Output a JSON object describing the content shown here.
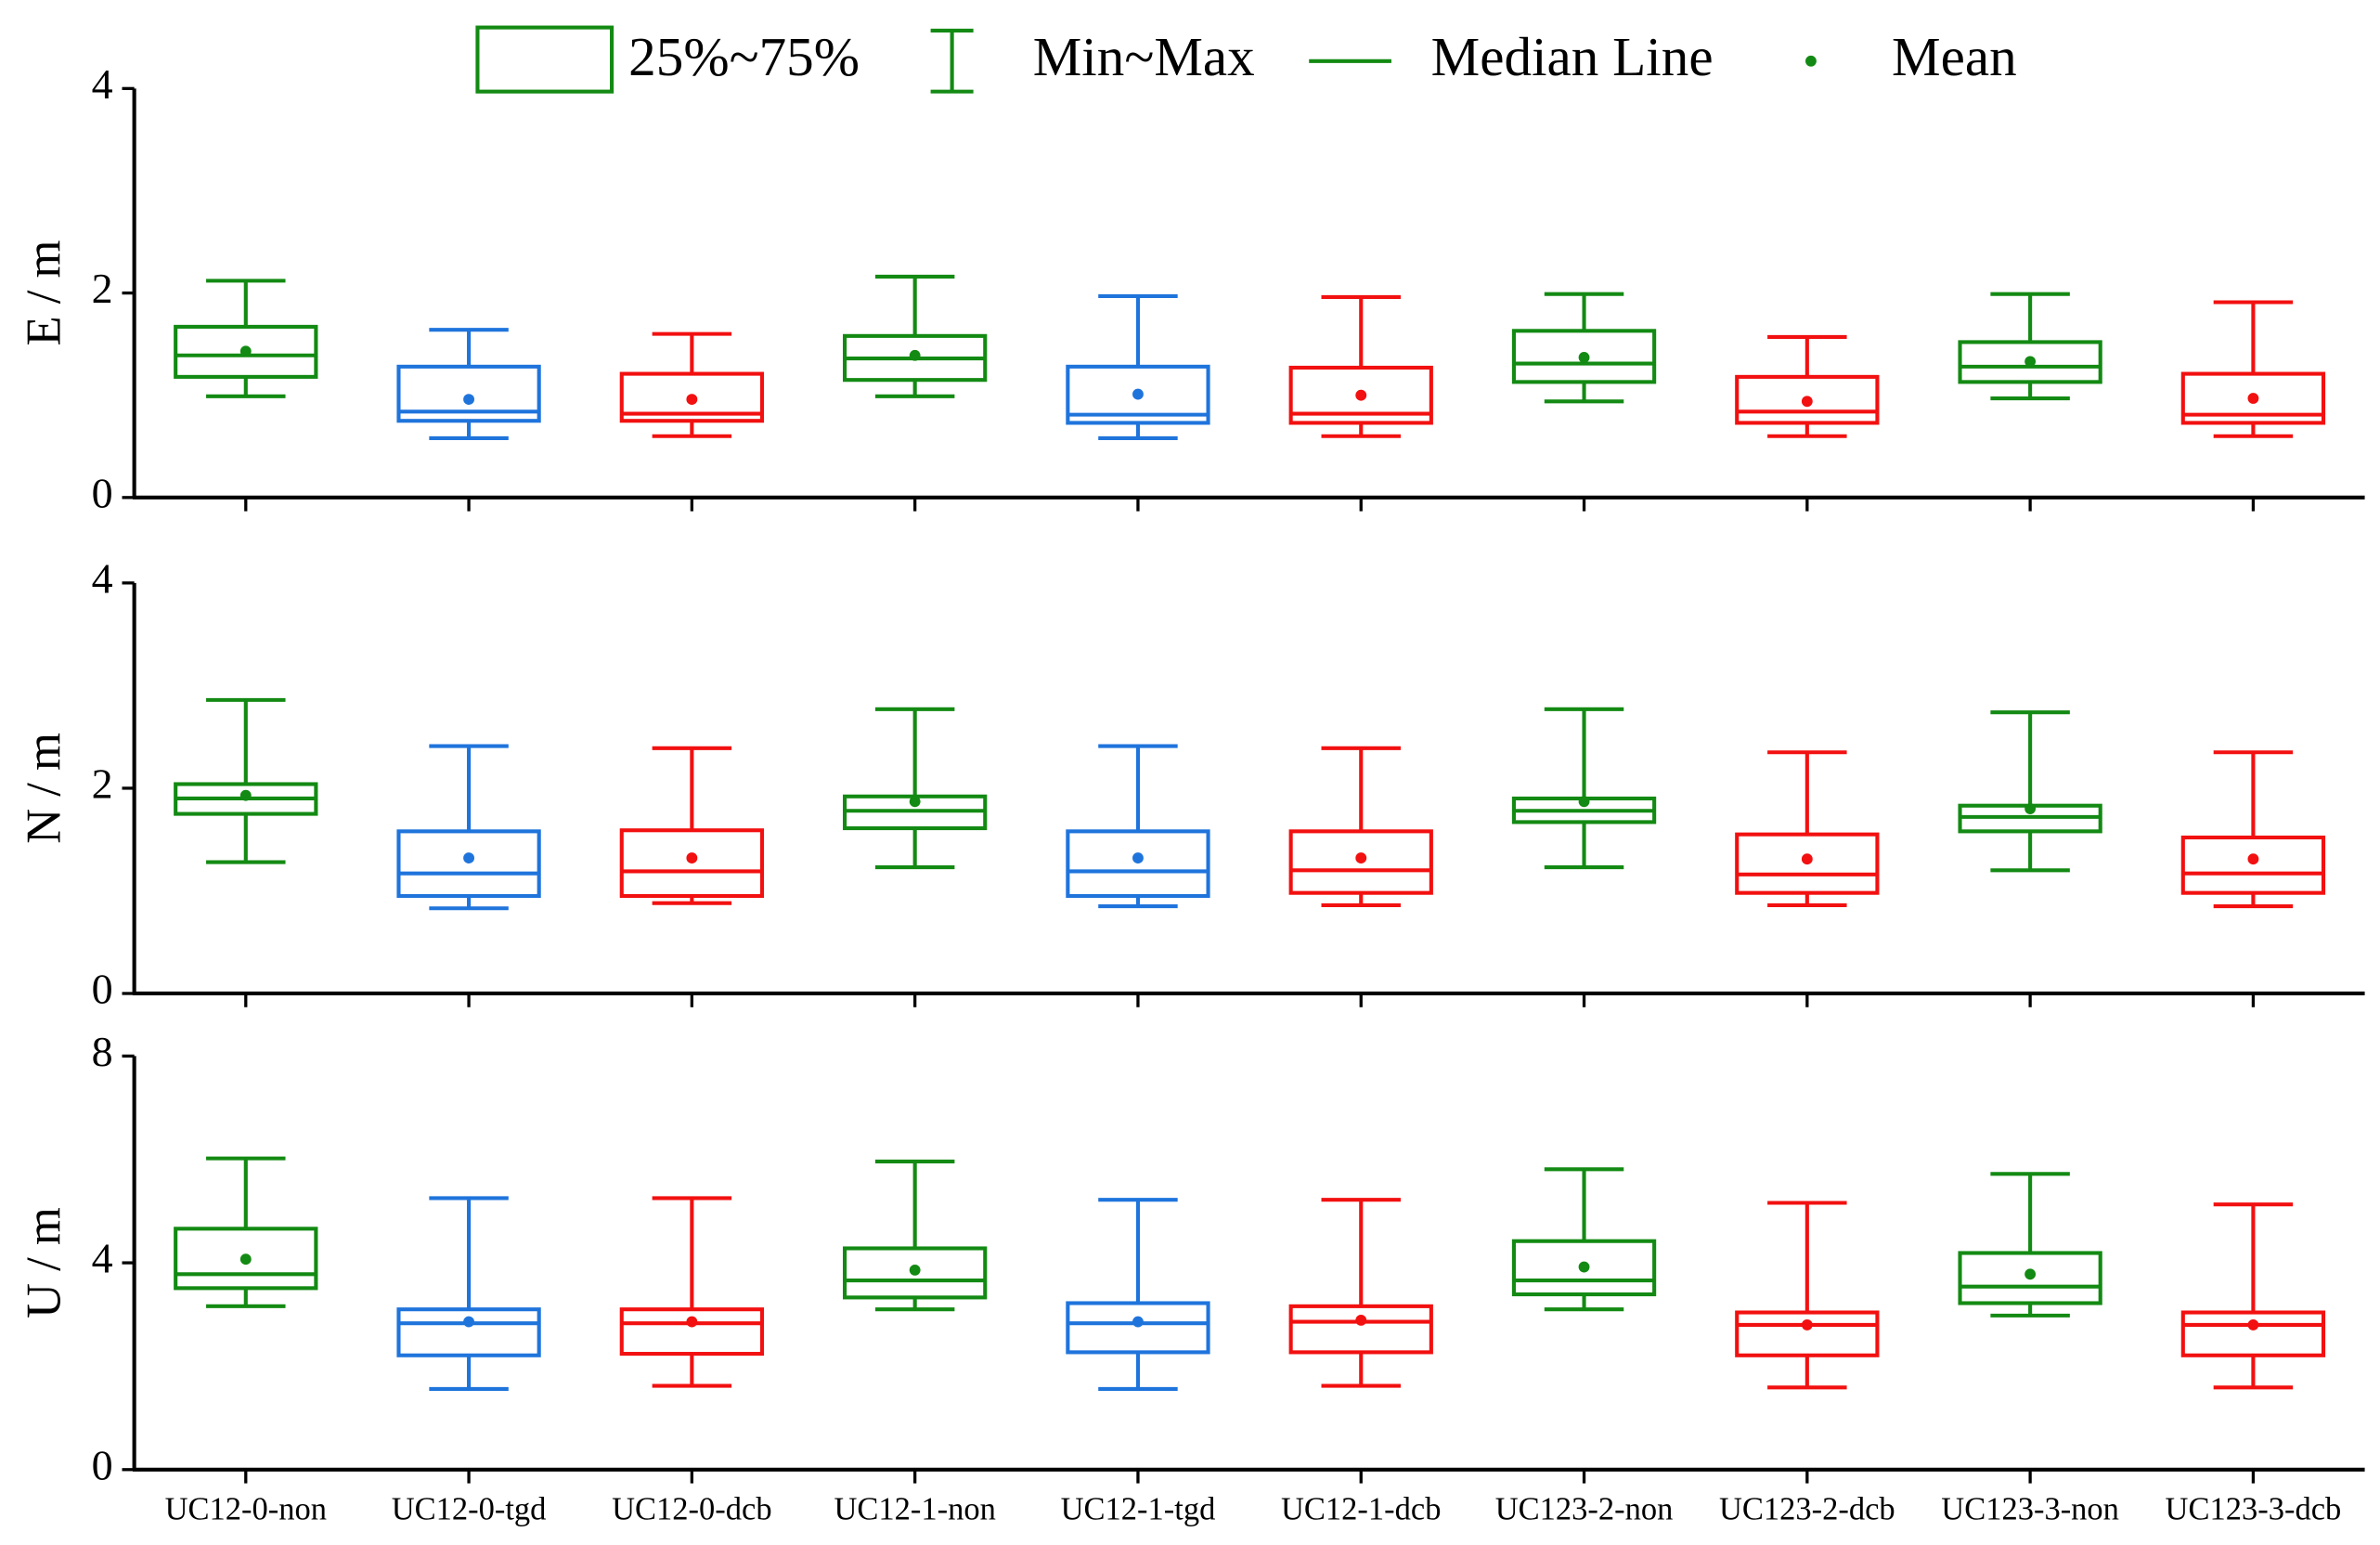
{
  "chart_data": [
    {
      "type": "box",
      "ylabel": "E / m",
      "ylim": [
        0,
        4
      ],
      "yticks": [
        0,
        2,
        4
      ],
      "legend": [
        "25%~75%",
        "Min~Max",
        "Median Line",
        "Mean"
      ],
      "legend_color": "#138a13",
      "boxes": [
        {
          "min": 0.99,
          "q1": 1.18,
          "median": 1.39,
          "q3": 1.67,
          "max": 2.12,
          "mean": 1.43,
          "color": "#138a13"
        },
        {
          "min": 0.58,
          "q1": 0.75,
          "median": 0.84,
          "q3": 1.28,
          "max": 1.64,
          "mean": 0.96,
          "color": "#1f74dc"
        },
        {
          "min": 0.6,
          "q1": 0.75,
          "median": 0.82,
          "q3": 1.21,
          "max": 1.6,
          "mean": 0.96,
          "color": "#f21010"
        },
        {
          "min": 0.99,
          "q1": 1.15,
          "median": 1.36,
          "q3": 1.58,
          "max": 2.16,
          "mean": 1.39,
          "color": "#138a13"
        },
        {
          "min": 0.58,
          "q1": 0.73,
          "median": 0.81,
          "q3": 1.28,
          "max": 1.97,
          "mean": 1.01,
          "color": "#1f74dc"
        },
        {
          "min": 0.6,
          "q1": 0.73,
          "median": 0.82,
          "q3": 1.27,
          "max": 1.96,
          "mean": 1.0,
          "color": "#f21010"
        },
        {
          "min": 0.94,
          "q1": 1.13,
          "median": 1.31,
          "q3": 1.63,
          "max": 1.99,
          "mean": 1.37,
          "color": "#138a13"
        },
        {
          "min": 0.6,
          "q1": 0.73,
          "median": 0.84,
          "q3": 1.18,
          "max": 1.57,
          "mean": 0.94,
          "color": "#f21010"
        },
        {
          "min": 0.97,
          "q1": 1.13,
          "median": 1.28,
          "q3": 1.52,
          "max": 1.99,
          "mean": 1.33,
          "color": "#138a13"
        },
        {
          "min": 0.6,
          "q1": 0.73,
          "median": 0.81,
          "q3": 1.21,
          "max": 1.91,
          "mean": 0.97,
          "color": "#f21010"
        }
      ]
    },
    {
      "type": "box",
      "ylabel": "N / m",
      "ylim": [
        0,
        4
      ],
      "yticks": [
        0,
        2,
        4
      ],
      "boxes": [
        {
          "min": 1.28,
          "q1": 1.75,
          "median": 1.9,
          "q3": 2.04,
          "max": 2.86,
          "mean": 1.93,
          "color": "#138a13"
        },
        {
          "min": 0.83,
          "q1": 0.95,
          "median": 1.17,
          "q3": 1.58,
          "max": 2.41,
          "mean": 1.32,
          "color": "#1f74dc"
        },
        {
          "min": 0.88,
          "q1": 0.95,
          "median": 1.19,
          "q3": 1.59,
          "max": 2.39,
          "mean": 1.32,
          "color": "#f21010"
        },
        {
          "min": 1.23,
          "q1": 1.61,
          "median": 1.78,
          "q3": 1.92,
          "max": 2.77,
          "mean": 1.87,
          "color": "#138a13"
        },
        {
          "min": 0.85,
          "q1": 0.95,
          "median": 1.19,
          "q3": 1.58,
          "max": 2.41,
          "mean": 1.32,
          "color": "#1f74dc"
        },
        {
          "min": 0.86,
          "q1": 0.98,
          "median": 1.2,
          "q3": 1.58,
          "max": 2.39,
          "mean": 1.32,
          "color": "#f21010"
        },
        {
          "min": 1.23,
          "q1": 1.67,
          "median": 1.78,
          "q3": 1.9,
          "max": 2.77,
          "mean": 1.87,
          "color": "#138a13"
        },
        {
          "min": 0.86,
          "q1": 0.98,
          "median": 1.16,
          "q3": 1.55,
          "max": 2.35,
          "mean": 1.31,
          "color": "#f21010"
        },
        {
          "min": 1.2,
          "q1": 1.58,
          "median": 1.72,
          "q3": 1.83,
          "max": 2.74,
          "mean": 1.8,
          "color": "#138a13"
        },
        {
          "min": 0.85,
          "q1": 0.98,
          "median": 1.17,
          "q3": 1.52,
          "max": 2.35,
          "mean": 1.31,
          "color": "#f21010"
        }
      ]
    },
    {
      "type": "box",
      "ylabel": "U / m",
      "ylim": [
        0,
        8
      ],
      "yticks": [
        0,
        4,
        8
      ],
      "categories": [
        "UC12-0-non",
        "UC12-0-tgd",
        "UC12-0-dcb",
        "UC12-1-non",
        "UC12-1-tgd",
        "UC12-1-dcb",
        "UC123-2-non",
        "UC123-2-dcb",
        "UC123-3-non",
        "UC123-3-dcb"
      ],
      "boxes": [
        {
          "min": 3.16,
          "q1": 3.51,
          "median": 3.78,
          "q3": 4.66,
          "max": 6.02,
          "mean": 4.07,
          "color": "#138a13"
        },
        {
          "min": 1.56,
          "q1": 2.21,
          "median": 2.83,
          "q3": 3.1,
          "max": 5.25,
          "mean": 2.86,
          "color": "#1f74dc"
        },
        {
          "min": 1.62,
          "q1": 2.24,
          "median": 2.83,
          "q3": 3.1,
          "max": 5.25,
          "mean": 2.86,
          "color": "#f21010"
        },
        {
          "min": 3.1,
          "q1": 3.33,
          "median": 3.66,
          "q3": 4.28,
          "max": 5.96,
          "mean": 3.86,
          "color": "#138a13"
        },
        {
          "min": 1.56,
          "q1": 2.27,
          "median": 2.83,
          "q3": 3.22,
          "max": 5.22,
          "mean": 2.86,
          "color": "#1f74dc"
        },
        {
          "min": 1.62,
          "q1": 2.27,
          "median": 2.86,
          "q3": 3.16,
          "max": 5.22,
          "mean": 2.89,
          "color": "#f21010"
        },
        {
          "min": 3.1,
          "q1": 3.39,
          "median": 3.66,
          "q3": 4.42,
          "max": 5.81,
          "mean": 3.92,
          "color": "#138a13"
        },
        {
          "min": 1.59,
          "q1": 2.21,
          "median": 2.8,
          "q3": 3.04,
          "max": 5.16,
          "mean": 2.8,
          "color": "#f21010"
        },
        {
          "min": 2.98,
          "q1": 3.22,
          "median": 3.54,
          "q3": 4.19,
          "max": 5.72,
          "mean": 3.78,
          "color": "#138a13"
        },
        {
          "min": 1.59,
          "q1": 2.21,
          "median": 2.8,
          "q3": 3.04,
          "max": 5.13,
          "mean": 2.8,
          "color": "#f21010"
        }
      ]
    }
  ]
}
